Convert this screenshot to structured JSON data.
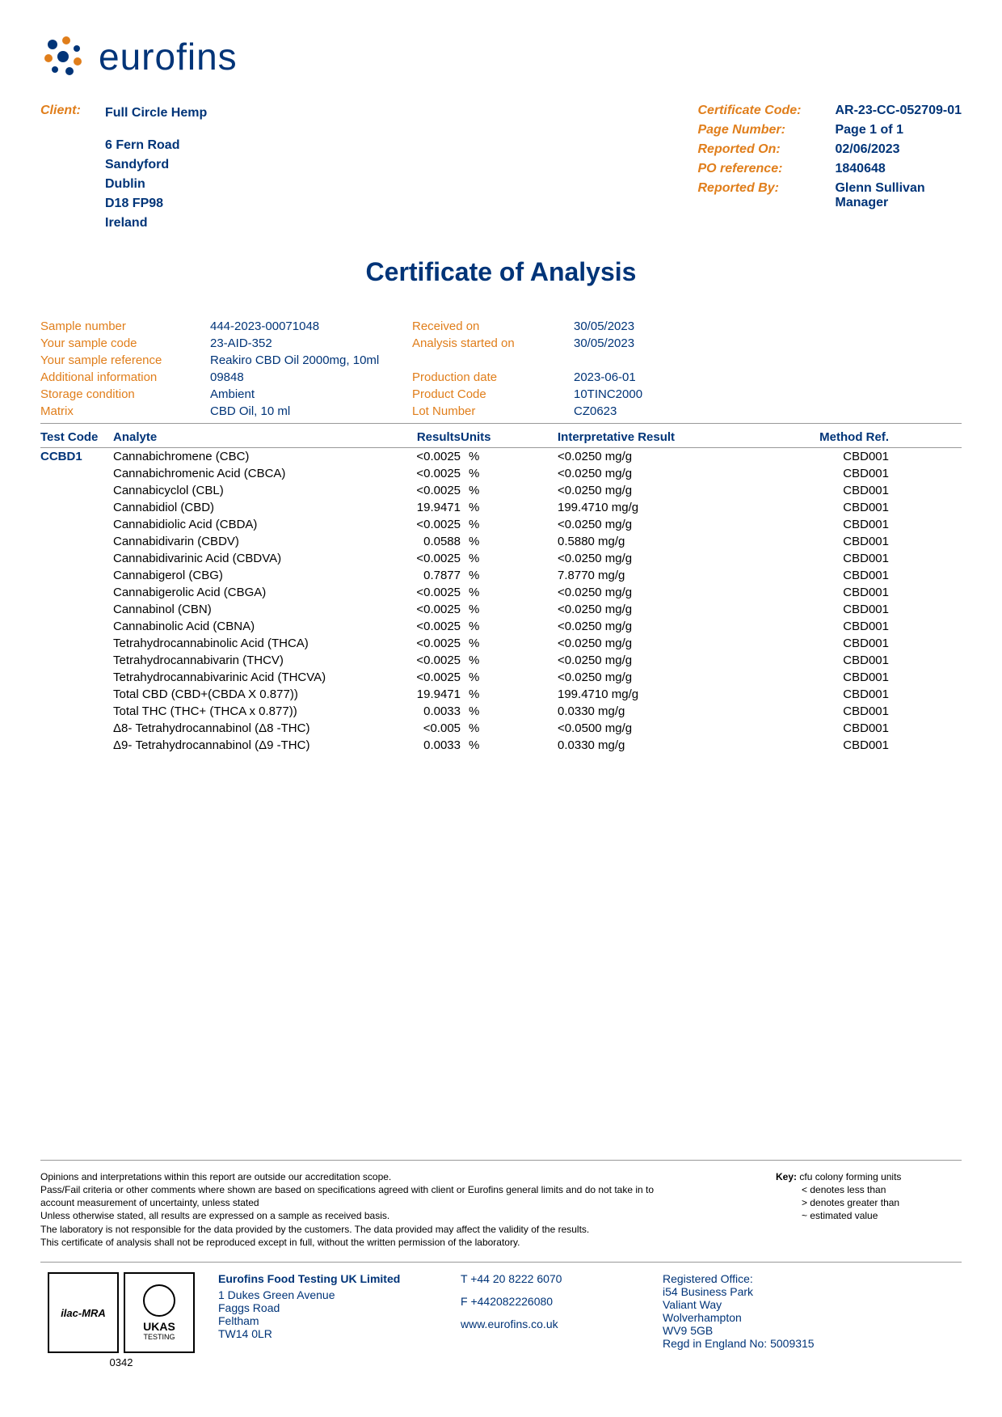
{
  "logo_text": "eurofins",
  "client_label": "Client:",
  "client": {
    "name": "Full Circle Hemp",
    "addr1": "6 Fern Road",
    "addr2": "Sandyford",
    "addr3": "Dublin",
    "addr4": "D18 FP98",
    "addr5": "Ireland"
  },
  "cert": [
    {
      "label": "Certificate Code:",
      "value": "AR-23-CC-052709-01"
    },
    {
      "label": "Page Number:",
      "value": "Page 1 of 1"
    },
    {
      "label": "Reported On:",
      "value": "02/06/2023"
    },
    {
      "label": "PO reference:",
      "value": "1840648"
    },
    {
      "label": "Reported By:",
      "value": "Glenn Sullivan\nManager"
    }
  ],
  "title": "Certificate of Analysis",
  "meta": [
    [
      "Sample number",
      "444-2023-00071048",
      "Received on",
      "30/05/2023"
    ],
    [
      "Your sample code",
      "23-AID-352",
      "Analysis started on",
      "30/05/2023"
    ],
    [
      "Your sample reference",
      "Reakiro CBD Oil 2000mg, 10ml",
      "",
      ""
    ],
    [
      "Additional information",
      "09848",
      "Production date",
      "2023-06-01"
    ],
    [
      "Storage condition",
      "Ambient",
      "Product Code",
      "10TINC2000"
    ],
    [
      "Matrix",
      "CBD Oil, 10 ml",
      "Lot Number",
      "CZ0623"
    ]
  ],
  "table_head": [
    "Test Code",
    "Analyte",
    "Results",
    "Units",
    "Interpretative Result",
    "Method Ref."
  ],
  "test_code": "CCBD1",
  "rows": [
    {
      "analyte": "Cannabichromene (CBC)",
      "result": "<0.0025",
      "units": "%",
      "interp": "<0.0250 mg/g",
      "method": "CBD001"
    },
    {
      "analyte": "Cannabichromenic Acid (CBCA)",
      "result": "<0.0025",
      "units": "%",
      "interp": "<0.0250 mg/g",
      "method": "CBD001"
    },
    {
      "analyte": "Cannabicyclol (CBL)",
      "result": "<0.0025",
      "units": "%",
      "interp": "<0.0250 mg/g",
      "method": "CBD001"
    },
    {
      "analyte": "Cannabidiol (CBD)",
      "result": "19.9471",
      "units": "%",
      "interp": "199.4710 mg/g",
      "method": "CBD001"
    },
    {
      "analyte": "Cannabidiolic Acid (CBDA)",
      "result": "<0.0025",
      "units": "%",
      "interp": "<0.0250 mg/g",
      "method": "CBD001"
    },
    {
      "analyte": "Cannabidivarin (CBDV)",
      "result": "0.0588",
      "units": "%",
      "interp": "0.5880 mg/g",
      "method": "CBD001"
    },
    {
      "analyte": "Cannabidivarinic Acid (CBDVA)",
      "result": "<0.0025",
      "units": "%",
      "interp": "<0.0250 mg/g",
      "method": "CBD001"
    },
    {
      "analyte": "Cannabigerol (CBG)",
      "result": "0.7877",
      "units": "%",
      "interp": "7.8770 mg/g",
      "method": "CBD001"
    },
    {
      "analyte": "Cannabigerolic Acid (CBGA)",
      "result": "<0.0025",
      "units": "%",
      "interp": "<0.0250 mg/g",
      "method": "CBD001"
    },
    {
      "analyte": "Cannabinol (CBN)",
      "result": "<0.0025",
      "units": "%",
      "interp": "<0.0250 mg/g",
      "method": "CBD001"
    },
    {
      "analyte": "Cannabinolic Acid (CBNA)",
      "result": "<0.0025",
      "units": "%",
      "interp": "<0.0250 mg/g",
      "method": "CBD001"
    },
    {
      "analyte": "Tetrahydrocannabinolic Acid (THCA)",
      "result": "<0.0025",
      "units": "%",
      "interp": "<0.0250 mg/g",
      "method": "CBD001"
    },
    {
      "analyte": "Tetrahydrocannabivarin (THCV)",
      "result": "<0.0025",
      "units": "%",
      "interp": "<0.0250 mg/g",
      "method": "CBD001"
    },
    {
      "analyte": "Tetrahydrocannabivarinic Acid (THCVA)",
      "result": "<0.0025",
      "units": "%",
      "interp": "<0.0250 mg/g",
      "method": "CBD001"
    },
    {
      "analyte": "Total CBD (CBD+(CBDA X 0.877))",
      "result": "19.9471",
      "units": "%",
      "interp": "199.4710 mg/g",
      "method": "CBD001"
    },
    {
      "analyte": "Total THC (THC+ (THCA x 0.877))",
      "result": "0.0033",
      "units": "%",
      "interp": "0.0330 mg/g",
      "method": "CBD001"
    },
    {
      "analyte": "Δ8- Tetrahydrocannabinol (Δ8 -THC)",
      "result": "<0.005",
      "units": "%",
      "interp": "<0.0500 mg/g",
      "method": "CBD001"
    },
    {
      "analyte": "Δ9- Tetrahydrocannabinol (Δ9 -THC)",
      "result": "0.0033",
      "units": "%",
      "interp": "0.0330 mg/g",
      "method": "CBD001"
    }
  ],
  "disclaimer": [
    "Opinions and interpretations within this report are outside our accreditation scope.",
    "Pass/Fail criteria or other comments where shown are based on specifications agreed with client or Eurofins general limits and do not take in to account measurement of uncertainty, unless stated",
    "Unless otherwise stated, all results are expressed on a sample as received basis.",
    "The laboratory is not responsible for the data provided by the customers. The data provided may affect the validity of the results.",
    "This certificate of analysis shall not be reproduced except in full, without the written permission of the laboratory."
  ],
  "key_title": "Key:",
  "key": [
    "cfu colony forming units",
    "< denotes less than",
    "> denotes greater than",
    "~ estimated value"
  ],
  "badge1": "ilac-MRA",
  "badge2_top": "UKAS",
  "badge2_bot": "TESTING",
  "badge_num": "0342",
  "company": {
    "name": "Eurofins Food Testing UK Limited",
    "addr1": "1 Dukes Green Avenue",
    "addr2": "Faggs Road",
    "addr3": "Feltham",
    "addr4": "TW14 0LR"
  },
  "contact": {
    "tel": "T  +44 20 8222 6070",
    "fax": "F  +442082226080",
    "web": "www.eurofins.co.uk"
  },
  "regoffice": {
    "title": "Registered Office:",
    "l1": "i54 Business Park",
    "l2": "Valiant Way",
    "l3": "Wolverhampton",
    "l4": "WV9 5GB",
    "l5": "Regd in England No: 5009315"
  },
  "colors": {
    "blue": "#003478",
    "orange": "#e07e1b"
  }
}
